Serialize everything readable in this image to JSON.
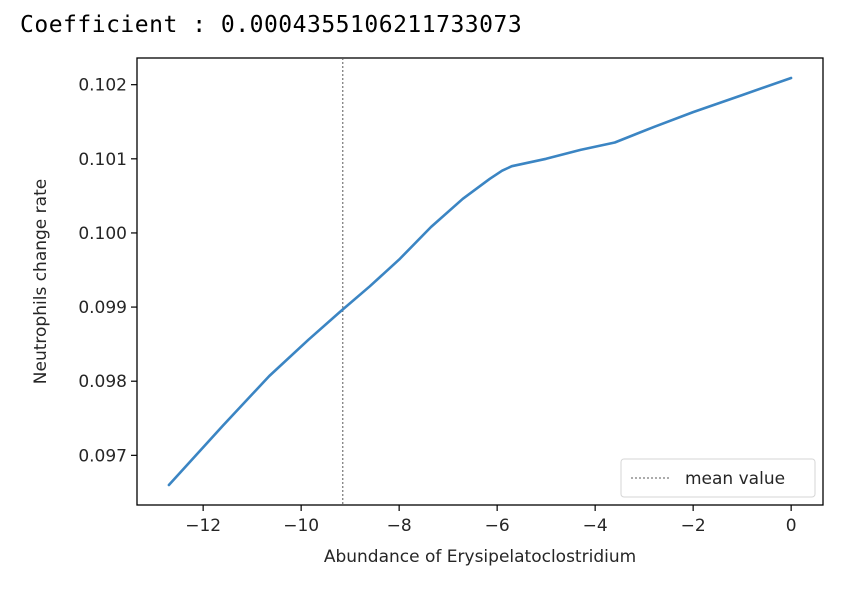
{
  "header": {
    "coefficient_label": "Coefficient",
    "separator": ":",
    "coefficient_value": "0.0004355106211733073"
  },
  "chart_data": {
    "type": "line",
    "title": "",
    "xlabel": "Abundance of Erysipelatoclostridium",
    "ylabel": "Neutrophils change rate",
    "xlim": [
      -13.35,
      0.65
    ],
    "ylim": [
      0.09633,
      0.10236
    ],
    "xticks": [
      -12,
      -10,
      -8,
      -6,
      -4,
      -2,
      0
    ],
    "xtick_labels": [
      "−12",
      "−10",
      "−8",
      "−6",
      "−4",
      "−2",
      "0"
    ],
    "yticks": [
      0.097,
      0.098,
      0.099,
      0.1,
      0.101,
      0.102
    ],
    "ytick_labels": [
      "0.097",
      "0.098",
      "0.099",
      "0.100",
      "0.101",
      "0.102"
    ],
    "series": [
      {
        "color": "#3b85c3",
        "x": [
          -12.7,
          -11.6,
          -10.65,
          -9.85,
          -9.2,
          -8.6,
          -8.0,
          -7.35,
          -6.7,
          -6.15,
          -5.9,
          -5.7,
          -5.0,
          -4.3,
          -3.6,
          -2.8,
          -2.0,
          -1.0,
          0.0
        ],
        "y": [
          0.0966,
          0.0974,
          0.09807,
          0.09856,
          0.09894,
          0.09928,
          0.09964,
          0.10008,
          0.10046,
          0.10073,
          0.10084,
          0.1009,
          0.101,
          0.10112,
          0.10122,
          0.10143,
          0.10163,
          0.10186,
          0.10209
        ]
      }
    ],
    "mean_line": {
      "x": -9.15,
      "color": "#595959",
      "style": "dotted"
    },
    "legend": {
      "position": "lower-right",
      "entries": [
        "mean value"
      ]
    },
    "grid": false
  }
}
